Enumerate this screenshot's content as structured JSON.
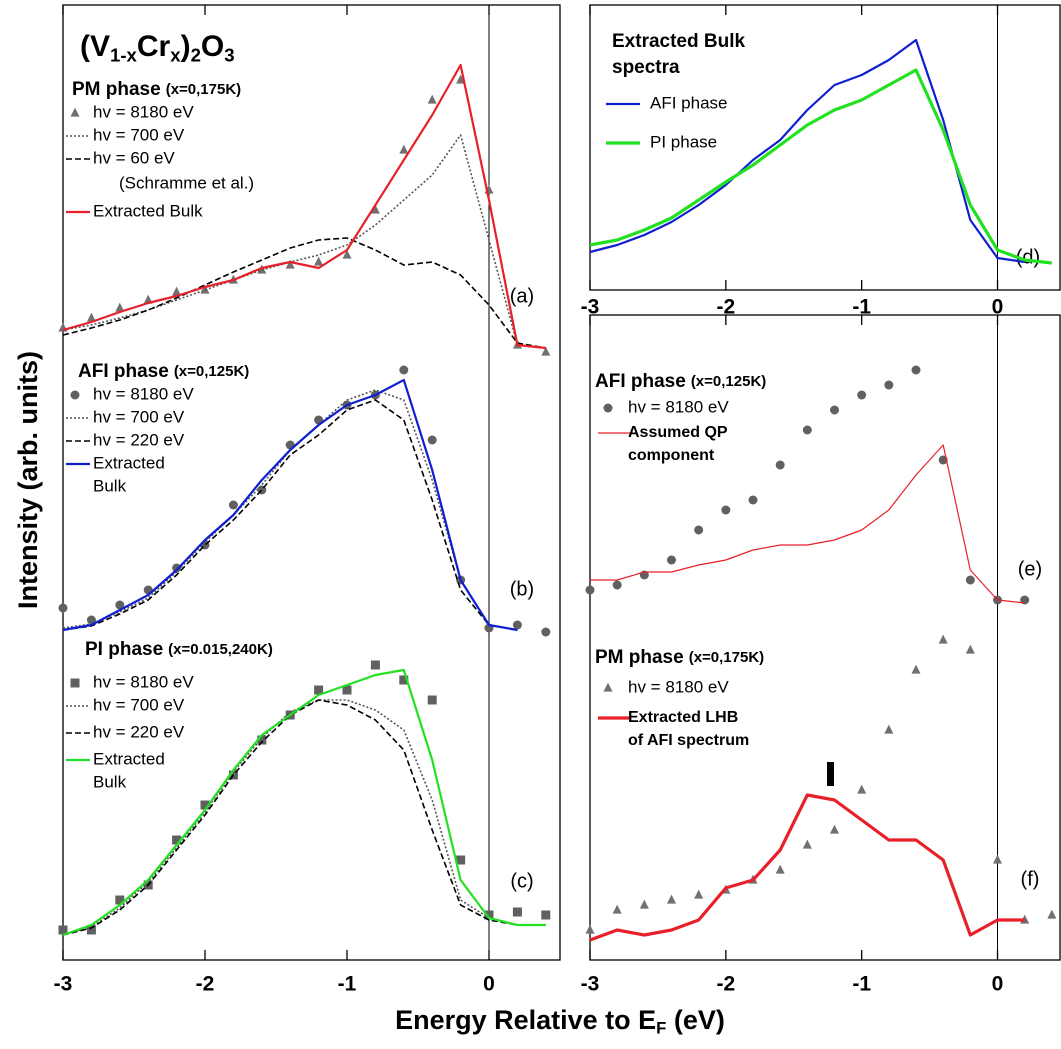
{
  "figure": {
    "formula": [
      "(V",
      "1-x",
      "Cr",
      "x",
      ")",
      "2",
      "O",
      "3"
    ],
    "y_label": "Intensity (arb. units)",
    "x_label": [
      "Energy Relative to E",
      "F",
      " (eV)"
    ]
  },
  "chart_data": [
    {
      "type": "line",
      "x": [
        -3,
        -2.8,
        -2.6,
        -2.4,
        -2.2,
        -2,
        -1.8,
        -1.6,
        -1.4,
        -1.2,
        -1,
        -0.8,
        -0.6,
        -0.4,
        -0.2,
        0,
        0.2,
        0.4
      ],
      "xlim": [
        -3,
        0.5
      ],
      "xticks": [
        -3,
        -2,
        -1,
        0
      ],
      "ylim": [
        0,
        955
      ],
      "panels": [
        {
          "label": "(a)",
          "phase": "PM phase",
          "phase_note": "(x=0,175K)",
          "series": [
            {
              "name": "hv = 8180 eV",
              "style": "triangle",
              "color": "#707070",
              "values": [
                632,
                642,
                652,
                660,
                668,
                670,
                680,
                690,
                695,
                698,
                705,
                750,
                810,
                860,
                880,
                770,
                615,
                608
              ]
            },
            {
              "name": "hv = 700 eV",
              "style": "dotted",
              "color": "#555555",
              "values": [
                630,
                635,
                642,
                650,
                660,
                670,
                680,
                690,
                698,
                705,
                715,
                735,
                760,
                785,
                825,
                720,
                615,
                612
              ]
            },
            {
              "name": "hv = 60 eV",
              "style": "dashed",
              "color": "#000000",
              "note": "(Schramme et al.)",
              "values": [
                625,
                632,
                640,
                650,
                662,
                675,
                688,
                700,
                712,
                720,
                722,
                710,
                695,
                698,
                685,
                655,
                617,
                612
              ]
            },
            {
              "name": [
                "Extracted Bulk"
              ],
              "style": "solid",
              "color": "#e8202a",
              "values": [
                630,
                638,
                648,
                657,
                664,
                673,
                680,
                692,
                698,
                692,
                710,
                755,
                800,
                845,
                895,
                760,
                615,
                612
              ]
            }
          ]
        },
        {
          "label": "(b)",
          "phase": "AFI phase",
          "phase_note": "(x=0,125K)",
          "series": [
            {
              "name": "hv = 8180 eV",
              "style": "circle",
              "color": "#606060",
              "values": [
                352,
                340,
                355,
                370,
                392,
                415,
                455,
                470,
                515,
                540,
                555,
                565,
                590,
                520,
                380,
                332,
                335,
                328
              ]
            },
            {
              "name": "hv = 700 eV",
              "style": "dotted",
              "color": "#555555",
              "values": [
                332,
                336,
                348,
                362,
                388,
                418,
                445,
                475,
                510,
                535,
                560,
                570,
                560,
                480,
                380,
                335,
                330,
                null
              ]
            },
            {
              "name": "hv = 220 eV",
              "style": "dashed",
              "color": "#000000",
              "values": [
                330,
                334,
                346,
                360,
                385,
                415,
                440,
                470,
                505,
                525,
                550,
                560,
                540,
                460,
                370,
                335,
                330,
                null
              ]
            },
            {
              "name": [
                "Extracted",
                "Bulk"
              ],
              "style": "solid",
              "color": "#1020d0",
              "values": [
                330,
                335,
                350,
                365,
                390,
                420,
                445,
                480,
                510,
                535,
                555,
                565,
                580,
                490,
                380,
                335,
                330,
                null
              ]
            }
          ]
        },
        {
          "label": "(c)",
          "phase": "PI phase",
          "phase_note": "(x=0.015,240K)",
          "series": [
            {
              "name": "hv = 8180 eV",
              "style": "square",
              "color": "#606060",
              "values": [
                30,
                30,
                60,
                75,
                120,
                155,
                185,
                220,
                245,
                270,
                270,
                295,
                280,
                260,
                100,
                45,
                48,
                45
              ]
            },
            {
              "name": "hv = 700 eV",
              "style": "dotted",
              "color": "#555555",
              "values": [
                25,
                33,
                52,
                78,
                112,
                148,
                188,
                222,
                248,
                260,
                260,
                250,
                230,
                160,
                60,
                42,
                35,
                35
              ]
            },
            {
              "name": "hv = 220 eV",
              "style": "dashed",
              "color": "#000000",
              "values": [
                25,
                32,
                50,
                75,
                110,
                145,
                185,
                218,
                245,
                260,
                255,
                240,
                210,
                130,
                55,
                40,
                35,
                35
              ]
            },
            {
              "name": [
                "Extracted",
                "Bulk"
              ],
              "style": "solid",
              "color": "#22e022",
              "values": [
                25,
                35,
                55,
                80,
                115,
                150,
                190,
                225,
                245,
                265,
                275,
                285,
                290,
                200,
                80,
                42,
                35,
                35
              ]
            }
          ]
        }
      ]
    },
    {
      "type": "line",
      "x": [
        -3,
        -2.8,
        -2.6,
        -2.4,
        -2.2,
        -2,
        -1.8,
        -1.6,
        -1.4,
        -1.2,
        -1,
        -0.8,
        -0.6,
        -0.4,
        -0.2,
        0,
        0.2,
        0.4
      ],
      "xlim": [
        -3,
        0.46
      ],
      "xticks": [
        -3,
        -2,
        -1,
        0
      ],
      "ylim": [
        0,
        285
      ],
      "panels": [
        {
          "label": "(d)",
          "legend_title": [
            "Extracted Bulk",
            "spectra"
          ],
          "series": [
            {
              "name": "AFI phase",
              "style": "solid",
              "color": "#1020d0",
              "values": [
                38,
                45,
                55,
                68,
                85,
                105,
                130,
                150,
                180,
                205,
                215,
                230,
                250,
                170,
                70,
                32,
                28,
                null
              ]
            },
            {
              "name": "PI phase",
              "style": "thick",
              "color": "#22e022",
              "values": [
                45,
                50,
                60,
                72,
                90,
                108,
                125,
                145,
                165,
                180,
                190,
                205,
                220,
                160,
                85,
                40,
                30,
                27
              ]
            }
          ]
        }
      ]
    },
    {
      "type": "line",
      "x": [
        -3,
        -2.8,
        -2.6,
        -2.4,
        -2.2,
        -2,
        -1.8,
        -1.6,
        -1.4,
        -1.2,
        -1,
        -0.8,
        -0.6,
        -0.4,
        -0.2,
        0,
        0.2,
        0.4
      ],
      "xlim": [
        -3,
        0.46
      ],
      "xticks": [
        -3,
        -2,
        -1,
        0
      ],
      "ylim": [
        0,
        645
      ],
      "panels": [
        {
          "label": "(e)",
          "phase": "AFI phase",
          "phase_note": "(x=0,125K)",
          "series": [
            {
              "name": "hv = 8180 eV",
              "style": "circle",
              "color": "#606060",
              "values": [
                370,
                375,
                385,
                400,
                430,
                450,
                460,
                495,
                530,
                550,
                565,
                575,
                590,
                500,
                380,
                360,
                360,
                null
              ]
            },
            {
              "name": [
                "Assumed QP",
                "component"
              ],
              "style": "thin",
              "color": "#e8202a",
              "values": [
                380,
                380,
                388,
                388,
                395,
                400,
                410,
                415,
                415,
                420,
                430,
                450,
                485,
                515,
                390,
                360,
                357,
                null
              ]
            }
          ]
        },
        {
          "label": "(f)",
          "phase": "PM phase",
          "phase_note": "(x=0,175K)",
          "series": [
            {
              "name": "hv = 8180 eV",
              "style": "triangle",
              "color": "#707070",
              "values": [
                30,
                50,
                55,
                60,
                65,
                70,
                80,
                90,
                115,
                130,
                170,
                230,
                290,
                320,
                310,
                100,
                40,
                45
              ]
            },
            {
              "name": [
                "Extracted LHB",
                "of AFI spectrum"
              ],
              "style": "thick",
              "color": "#e8202a",
              "values": [
                20,
                30,
                25,
                30,
                40,
                72,
                80,
                110,
                165,
                160,
                140,
                120,
                120,
                100,
                25,
                40,
                40,
                null
              ]
            }
          ]
        }
      ]
    }
  ]
}
